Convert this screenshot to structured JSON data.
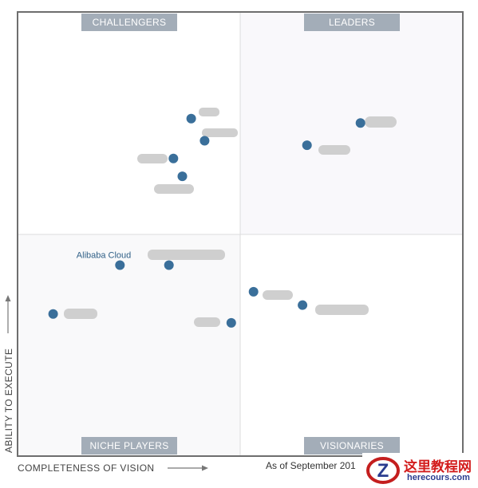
{
  "chart_data": {
    "type": "scatter",
    "quadrants": {
      "top_left": "CHALLENGERS",
      "top_right": "LEADERS",
      "bottom_left": "NICHE PLAYERS",
      "bottom_right": "VISIONARIES"
    },
    "xlabel": "COMPLETENESS OF VISION",
    "ylabel": "ABILITY TO EXECUTE",
    "as_of": "As of September 201",
    "xlim": [
      0,
      1
    ],
    "ylim": [
      0,
      1
    ],
    "grid": false,
    "points_color": "#3a6f9a",
    "points": [
      {
        "label": "",
        "x": 0.77,
        "y": 0.75
      },
      {
        "label": "",
        "x": 0.65,
        "y": 0.7
      },
      {
        "label": "",
        "x": 0.39,
        "y": 0.76
      },
      {
        "label": "",
        "x": 0.42,
        "y": 0.71
      },
      {
        "label": "",
        "x": 0.35,
        "y": 0.67
      },
      {
        "label": "",
        "x": 0.37,
        "y": 0.63
      },
      {
        "label": "Alibaba Cloud",
        "x": 0.23,
        "y": 0.43
      },
      {
        "label": "",
        "x": 0.34,
        "y": 0.43
      },
      {
        "label": "",
        "x": 0.53,
        "y": 0.37
      },
      {
        "label": "",
        "x": 0.64,
        "y": 0.34
      },
      {
        "label": "",
        "x": 0.08,
        "y": 0.32
      },
      {
        "label": "",
        "x": 0.48,
        "y": 0.3
      }
    ]
  },
  "watermark": {
    "title_cn": "这里教程网",
    "domain": "herecours.com"
  }
}
